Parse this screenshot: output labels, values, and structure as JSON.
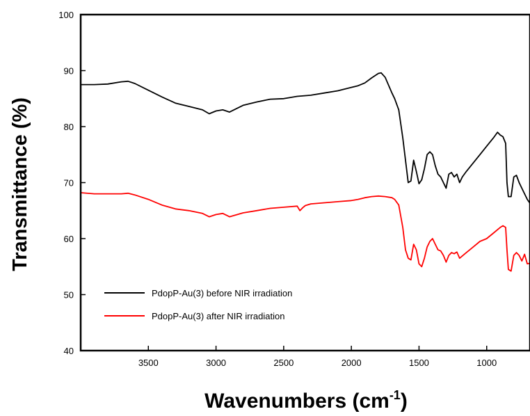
{
  "chart_data": {
    "type": "line",
    "xlabel_main": "Wavenumbers (cm",
    "xlabel_sup": "-1",
    "xlabel_close": ")",
    "ylabel": "Transmittance (%)",
    "xlim": [
      4000,
      680
    ],
    "ylim": [
      40,
      100
    ],
    "x_reversed": true,
    "xticks": [
      3500,
      3000,
      2500,
      2000,
      1500,
      1000
    ],
    "yticks": [
      40,
      50,
      60,
      70,
      80,
      90,
      100
    ],
    "legend_position": "bottom-left",
    "grid": false,
    "series": [
      {
        "name": "PdopP-Au(3) before NIR irradiation",
        "color": "#000000",
        "x": [
          4000,
          3900,
          3800,
          3700,
          3650,
          3600,
          3500,
          3400,
          3300,
          3200,
          3100,
          3050,
          3000,
          2950,
          2900,
          2800,
          2700,
          2600,
          2500,
          2400,
          2300,
          2200,
          2100,
          2000,
          1950,
          1900,
          1850,
          1800,
          1780,
          1750,
          1700,
          1680,
          1650,
          1620,
          1600,
          1580,
          1560,
          1540,
          1520,
          1500,
          1480,
          1460,
          1440,
          1420,
          1400,
          1380,
          1360,
          1340,
          1320,
          1300,
          1280,
          1260,
          1240,
          1220,
          1200,
          1180,
          1150,
          1100,
          1050,
          1000,
          950,
          920,
          900,
          880,
          860,
          850,
          840,
          820,
          800,
          780,
          760,
          740,
          720,
          700,
          680
        ],
        "y": [
          87.5,
          87.5,
          87.6,
          88.0,
          88.1,
          87.7,
          86.5,
          85.3,
          84.2,
          83.6,
          83.0,
          82.3,
          82.8,
          83.0,
          82.6,
          83.8,
          84.4,
          84.9,
          85.0,
          85.4,
          85.6,
          86.0,
          86.4,
          87.0,
          87.3,
          87.8,
          88.7,
          89.5,
          89.6,
          88.8,
          86.0,
          85.0,
          83.0,
          78.0,
          74.0,
          70.0,
          70.3,
          74.0,
          72.0,
          69.8,
          70.5,
          72.5,
          75.0,
          75.5,
          75.0,
          73.0,
          71.5,
          71.0,
          70.0,
          69.0,
          71.5,
          71.8,
          71.0,
          71.5,
          70.0,
          71.0,
          72.0,
          73.5,
          75.0,
          76.5,
          78.0,
          79.0,
          78.5,
          78.2,
          77.0,
          70.0,
          67.5,
          67.5,
          71.0,
          71.3,
          70.0,
          69.0,
          68.0,
          67.0,
          66.3
        ]
      },
      {
        "name": "PdopP-Au(3) after NIR irradiation",
        "color": "#ff0000",
        "x": [
          4000,
          3900,
          3800,
          3700,
          3650,
          3600,
          3500,
          3400,
          3300,
          3200,
          3100,
          3050,
          3000,
          2950,
          2900,
          2800,
          2700,
          2600,
          2500,
          2400,
          2380,
          2360,
          2340,
          2300,
          2200,
          2100,
          2000,
          1950,
          1900,
          1850,
          1800,
          1750,
          1700,
          1680,
          1650,
          1620,
          1600,
          1580,
          1560,
          1540,
          1520,
          1500,
          1480,
          1460,
          1440,
          1420,
          1400,
          1380,
          1360,
          1340,
          1320,
          1300,
          1280,
          1260,
          1240,
          1220,
          1200,
          1150,
          1100,
          1050,
          1000,
          950,
          900,
          880,
          860,
          850,
          840,
          820,
          800,
          780,
          760,
          740,
          720,
          700,
          680
        ],
        "y": [
          68.2,
          68.0,
          68.0,
          68.0,
          68.1,
          67.8,
          67.0,
          66.0,
          65.3,
          65.0,
          64.5,
          63.9,
          64.3,
          64.5,
          63.9,
          64.6,
          65.0,
          65.4,
          65.6,
          65.8,
          65.0,
          65.5,
          65.9,
          66.2,
          66.4,
          66.6,
          66.8,
          67.0,
          67.3,
          67.5,
          67.6,
          67.5,
          67.3,
          67.0,
          66.0,
          62.0,
          58.0,
          56.5,
          56.2,
          59.0,
          58.0,
          55.5,
          55.0,
          56.5,
          58.5,
          59.5,
          60.0,
          59.0,
          58.0,
          57.8,
          57.0,
          55.8,
          57.0,
          57.5,
          57.3,
          57.6,
          56.5,
          57.5,
          58.5,
          59.5,
          60.0,
          61.0,
          62.0,
          62.3,
          62.0,
          58.0,
          54.5,
          54.2,
          57.0,
          57.5,
          57.0,
          56.0,
          57.2,
          55.5,
          55.6
        ]
      }
    ]
  }
}
